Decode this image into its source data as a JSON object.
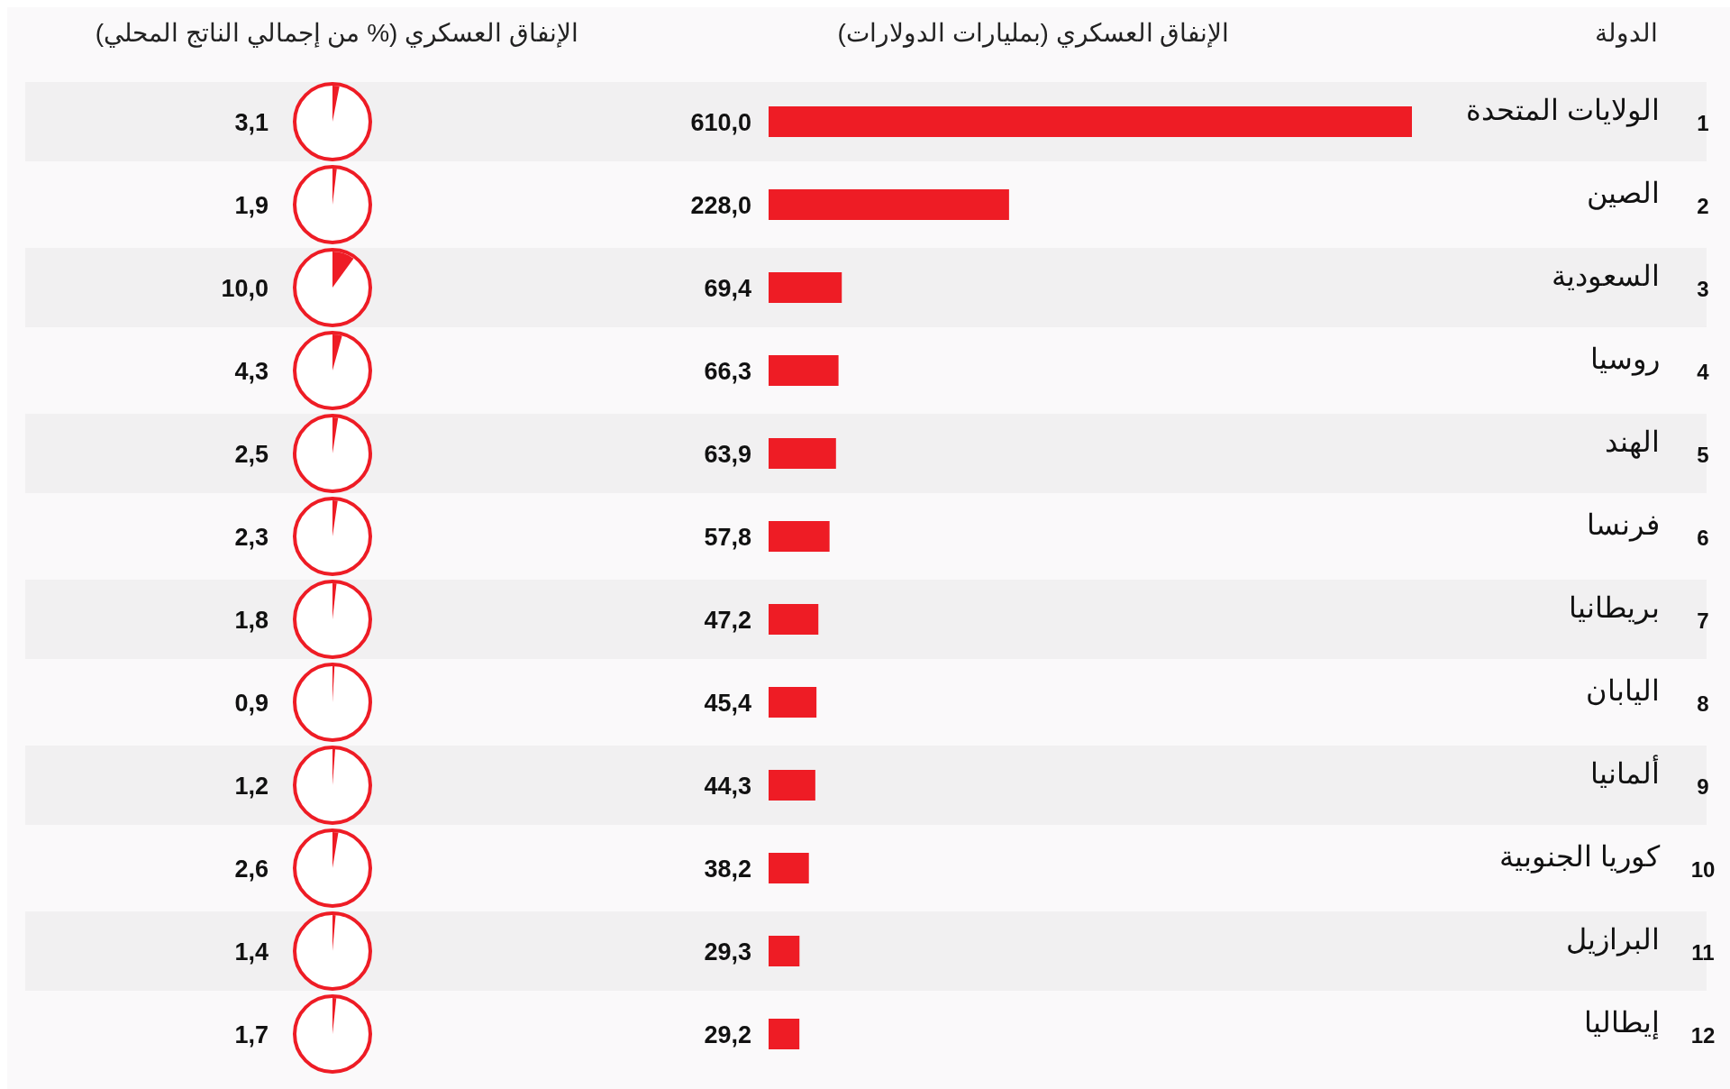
{
  "chart_data": [
    {
      "type": "bar",
      "orientation": "horizontal",
      "title": "الإنفاق العسكري (بمليارات الدولارات)",
      "ylabel": "الدولة",
      "color": "#ee1c25",
      "categories": [
        "الولايات المتحدة",
        "الصين",
        "السعودية",
        "روسيا",
        "الهند",
        "فرنسا",
        "بريطانيا",
        "اليابان",
        "ألمانيا",
        "كوريا الجنوبية",
        "البرازيل",
        "إيطاليا"
      ],
      "values": [
        610.0,
        228.0,
        69.4,
        66.3,
        63.9,
        57.8,
        47.2,
        45.4,
        44.3,
        38.2,
        29.3,
        29.2
      ],
      "value_labels": [
        "610,0",
        "228,0",
        "69,4",
        "66,3",
        "63,9",
        "57,8",
        "47,2",
        "45,4",
        "44,3",
        "38,2",
        "29,3",
        "29,2"
      ],
      "annotations": [
        "1",
        "2",
        "3",
        "4",
        "5",
        "6",
        "7",
        "8",
        "9",
        "10",
        "11",
        "12"
      ]
    },
    {
      "type": "other",
      "title": "الإنفاق العسكري (% من إجمالي الناتج المحلي)",
      "color": "#ee1c25",
      "categories": [
        null,
        null,
        null,
        null,
        null,
        null,
        null,
        null,
        null,
        null,
        null,
        null
      ],
      "values": [
        3.1,
        1.9,
        10.0,
        4.3,
        2.5,
        2.3,
        1.8,
        0.9,
        1.2,
        2.6,
        1.4,
        1.7
      ],
      "value_labels": [
        "3,1",
        "1,9",
        "10,0",
        "4,3",
        "2,5",
        "2,3",
        "1,8",
        "0,9",
        "1,2",
        "2,6",
        "1,4",
        "1,7"
      ]
    }
  ]
}
